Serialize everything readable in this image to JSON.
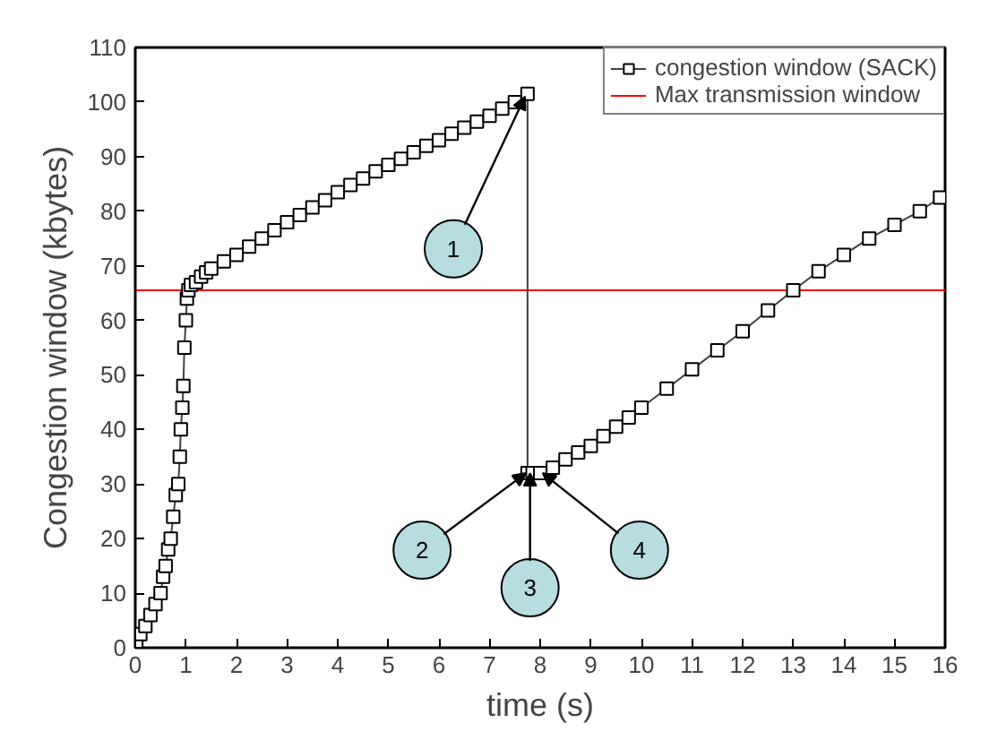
{
  "chart_data": {
    "type": "line",
    "xlabel": "time (s)",
    "ylabel": "Congestion window (kbytes)",
    "xlim": [
      0,
      16
    ],
    "ylim": [
      0,
      110
    ],
    "xticks": [
      0,
      1,
      2,
      3,
      4,
      5,
      6,
      7,
      8,
      9,
      10,
      11,
      12,
      13,
      14,
      15,
      16
    ],
    "yticks": [
      0,
      10,
      20,
      30,
      40,
      50,
      60,
      70,
      80,
      90,
      100,
      110
    ],
    "grid": false,
    "legend": "top right",
    "marker": "square",
    "line_style": "solid",
    "series": [
      {
        "name": "congestion window (SACK)",
        "color": "#404040",
        "x": [
          0.02,
          0.1,
          0.2,
          0.3,
          0.4,
          0.5,
          0.55,
          0.6,
          0.65,
          0.7,
          0.75,
          0.8,
          0.85,
          0.88,
          0.9,
          0.93,
          0.95,
          0.97,
          1.0,
          1.02,
          1.05,
          1.1,
          1.2,
          1.3,
          1.4,
          1.5,
          1.75,
          2.0,
          2.25,
          2.5,
          2.75,
          3.0,
          3.25,
          3.5,
          3.75,
          4.0,
          4.25,
          4.5,
          4.75,
          5.0,
          5.25,
          5.5,
          5.75,
          6.0,
          6.25,
          6.5,
          6.75,
          7.0,
          7.25,
          7.5,
          7.75,
          7.75,
          7.85,
          8.0,
          8.25,
          8.5,
          8.75,
          9.0,
          9.25,
          9.5,
          9.75,
          10.0,
          10.5,
          11.0,
          11.5,
          12.0,
          12.5,
          13.0,
          13.5,
          14.0,
          14.5,
          15.0,
          15.5,
          15.9
        ],
        "values": [
          1,
          2.5,
          4,
          6,
          8,
          10,
          13,
          15,
          18,
          20,
          24,
          28,
          30,
          35,
          40,
          44,
          48,
          55,
          60,
          64,
          65.5,
          66.5,
          67,
          68,
          68.8,
          69.5,
          70.8,
          72,
          73.5,
          75,
          76.5,
          78,
          79.3,
          80.7,
          82,
          83.5,
          84.8,
          86,
          87.3,
          88.5,
          89.6,
          90.8,
          92,
          93,
          94.2,
          95.3,
          96.4,
          97.5,
          98.8,
          100,
          101.5,
          32,
          32,
          32,
          33,
          34.5,
          35.8,
          37,
          38.8,
          40.5,
          42.2,
          44,
          47.5,
          51,
          54.5,
          58,
          61.8,
          65.5,
          69,
          72,
          75,
          77.5,
          80,
          82.5
        ]
      }
    ],
    "ref_lines": [
      {
        "axis": "y",
        "value": 65.5,
        "label": "Max transmission window",
        "color": "#ff0000",
        "line_style": "solid"
      }
    ],
    "annotations": [
      {
        "text": "1",
        "x": 7.7,
        "y": 101
      },
      {
        "text": "2",
        "x": 7.72,
        "y": 32
      },
      {
        "text": "3",
        "x": 7.8,
        "y": 32
      },
      {
        "text": "4",
        "x": 8.05,
        "y": 32
      }
    ]
  }
}
